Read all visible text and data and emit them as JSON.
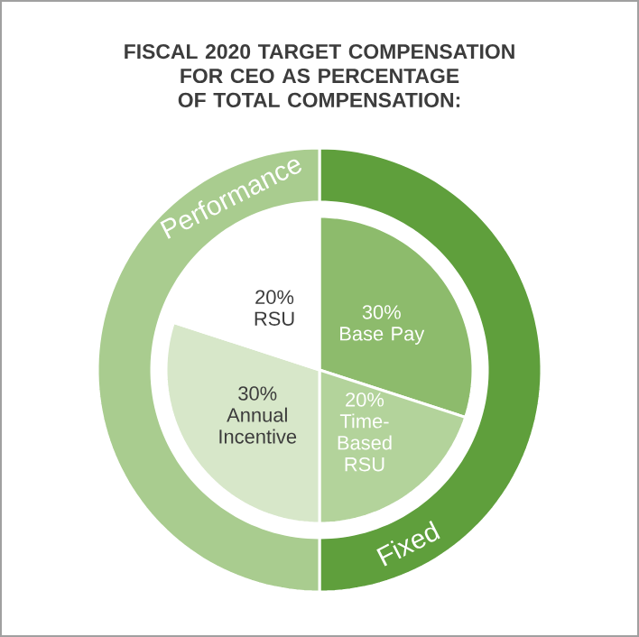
{
  "chart_data": [
    {
      "type": "pie",
      "title": "FISCAL 2020 TARGET COMPENSATION FOR CEO AS PERCENTAGE OF TOTAL COMPENSATION:",
      "categories": [
        "Base Pay",
        "Time-Based RSU",
        "Annual Incentive",
        "RSU"
      ],
      "values": [
        30,
        20,
        30,
        20
      ],
      "value_labels": [
        "30%",
        "20%",
        "30%",
        "20%"
      ],
      "colors": [
        "#8dbb6c",
        "#b3d39b",
        "#d7e7c9",
        "#ffffff"
      ]
    },
    {
      "type": "donut",
      "categories": [
        "Fixed",
        "Performance"
      ],
      "values": [
        50,
        50
      ],
      "colors": [
        "#5f9f3c",
        "#a9cc8f"
      ]
    }
  ]
}
